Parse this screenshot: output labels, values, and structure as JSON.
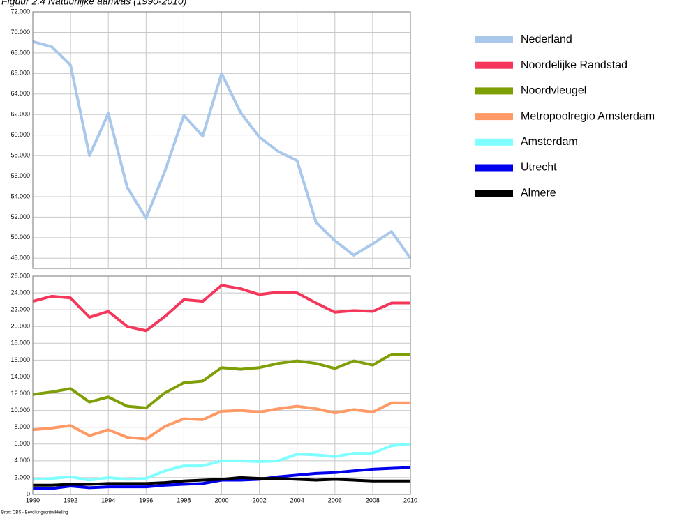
{
  "chart_data": [
    {
      "type": "line",
      "title": "Figuur 2.4 Natuurlijke aanwas (1990-2010)",
      "x": [
        1990,
        1991,
        1992,
        1993,
        1994,
        1995,
        1996,
        1997,
        1998,
        1999,
        2000,
        2001,
        2002,
        2003,
        2004,
        2005,
        2006,
        2007,
        2008,
        2009,
        2010
      ],
      "xlim": [
        1990,
        2010
      ],
      "series": [
        {
          "name": "Nederland",
          "color": "#a9c8ec",
          "values": [
            69100,
            68600,
            66800,
            58000,
            62100,
            54900,
            51900,
            56500,
            61900,
            59900,
            66000,
            62200,
            59800,
            58400,
            57500,
            51500,
            49700,
            48300,
            49400,
            50600,
            48000
          ]
        }
      ],
      "ylim": [
        47000,
        72000
      ],
      "yticks": [
        {
          "value": 48000,
          "label": "48.000"
        },
        {
          "value": 50000,
          "label": "50.000"
        },
        {
          "value": 52000,
          "label": "52.000"
        },
        {
          "value": 54000,
          "label": "54.000"
        },
        {
          "value": 56000,
          "label": "56.000"
        },
        {
          "value": 58000,
          "label": "58.000"
        },
        {
          "value": 60000,
          "label": "60.000"
        },
        {
          "value": 62000,
          "label": "62.000"
        },
        {
          "value": 64000,
          "label": "64.000"
        },
        {
          "value": 66000,
          "label": "66.000"
        },
        {
          "value": 68000,
          "label": "68.000"
        },
        {
          "value": 70000,
          "label": "70.000"
        },
        {
          "value": 72000,
          "label": "72.000"
        }
      ],
      "grid": true,
      "legend": "right"
    },
    {
      "type": "line",
      "source": "Bron: CBS - Bevolkingsontwikkeling",
      "x": [
        1990,
        1991,
        1992,
        1993,
        1994,
        1995,
        1996,
        1997,
        1998,
        1999,
        2000,
        2001,
        2002,
        2003,
        2004,
        2005,
        2006,
        2007,
        2008,
        2009,
        2010
      ],
      "xlim": [
        1990,
        2010
      ],
      "xticks": [
        1990,
        1992,
        1994,
        1996,
        1998,
        2000,
        2002,
        2004,
        2006,
        2008,
        2010
      ],
      "series": [
        {
          "name": "Noordelijke Randstad",
          "color": "#f4375a",
          "values": [
            23000,
            23600,
            23400,
            21100,
            21800,
            20000,
            19500,
            21200,
            23200,
            23000,
            24900,
            24500,
            23800,
            24100,
            24000,
            22800,
            21700,
            21900,
            21800,
            22800,
            22800
          ]
        },
        {
          "name": "Noordvleugel",
          "color": "#7f9f06",
          "values": [
            11900,
            12200,
            12600,
            11000,
            11600,
            10500,
            10300,
            12100,
            13300,
            13500,
            15100,
            14900,
            15100,
            15600,
            15900,
            15600,
            15000,
            15900,
            15400,
            16700,
            16700
          ]
        },
        {
          "name": "Metropoolregio Amsterdam",
          "color": "#ff9966",
          "values": [
            7700,
            7900,
            8200,
            7000,
            7700,
            6800,
            6600,
            8100,
            9000,
            8900,
            9900,
            10000,
            9800,
            10200,
            10500,
            10200,
            9700,
            10100,
            9800,
            10900,
            10900
          ]
        },
        {
          "name": "Amsterdam",
          "color": "#80ffff",
          "values": [
            1800,
            1900,
            2100,
            1700,
            2000,
            1800,
            1900,
            2800,
            3400,
            3400,
            4000,
            4000,
            3900,
            4000,
            4800,
            4700,
            4500,
            4900,
            4900,
            5800,
            6000
          ]
        },
        {
          "name": "Utrecht",
          "color": "#0000ee",
          "values": [
            700,
            700,
            1000,
            800,
            900,
            900,
            900,
            1100,
            1200,
            1300,
            1700,
            1700,
            1800,
            2100,
            2300,
            2500,
            2600,
            2800,
            3000,
            3100,
            3200
          ]
        },
        {
          "name": "Almere",
          "color": "#000000",
          "values": [
            1100,
            1100,
            1200,
            1200,
            1300,
            1300,
            1300,
            1400,
            1600,
            1700,
            1800,
            2000,
            1900,
            1900,
            1800,
            1700,
            1800,
            1700,
            1600,
            1600,
            1600
          ]
        }
      ],
      "ylim": [
        0,
        26000
      ],
      "yticks": [
        0,
        {
          "value": 2000,
          "label": "2.000"
        },
        {
          "value": 4000,
          "label": "4.000"
        },
        {
          "value": 6000,
          "label": "6.000"
        },
        {
          "value": 8000,
          "label": "8.000"
        },
        {
          "value": 10000,
          "label": "10.000"
        },
        {
          "value": 12000,
          "label": "12.000"
        },
        {
          "value": 14000,
          "label": "14.000"
        },
        {
          "value": 16000,
          "label": "16.000"
        },
        {
          "value": 18000,
          "label": "18.000"
        },
        {
          "value": 20000,
          "label": "20.000"
        },
        {
          "value": 22000,
          "label": "22.000"
        },
        {
          "value": 24000,
          "label": "24.000"
        },
        {
          "value": 26000,
          "label": "26.000"
        }
      ],
      "grid": true
    }
  ]
}
